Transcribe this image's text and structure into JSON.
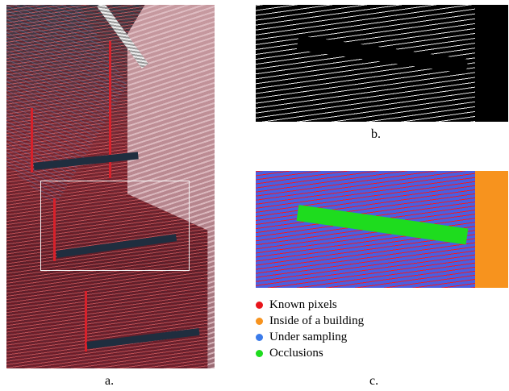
{
  "captions": {
    "a": "a.",
    "b": "b.",
    "c": "c."
  },
  "legend": [
    {
      "label": "Known pixels",
      "color": "#e8151b"
    },
    {
      "label": "Inside of a building",
      "color": "#f7931e"
    },
    {
      "label": "Under sampling",
      "color": "#3b7bea"
    },
    {
      "label": "Occlusions",
      "color": "#1edc1e"
    }
  ],
  "colors": {
    "known_pixels": "#e8151b",
    "inside_building": "#f7931e",
    "under_sampling": "#4a5fe0",
    "occlusions": "#1edc1e",
    "selection_box": "#f4f4f4"
  }
}
